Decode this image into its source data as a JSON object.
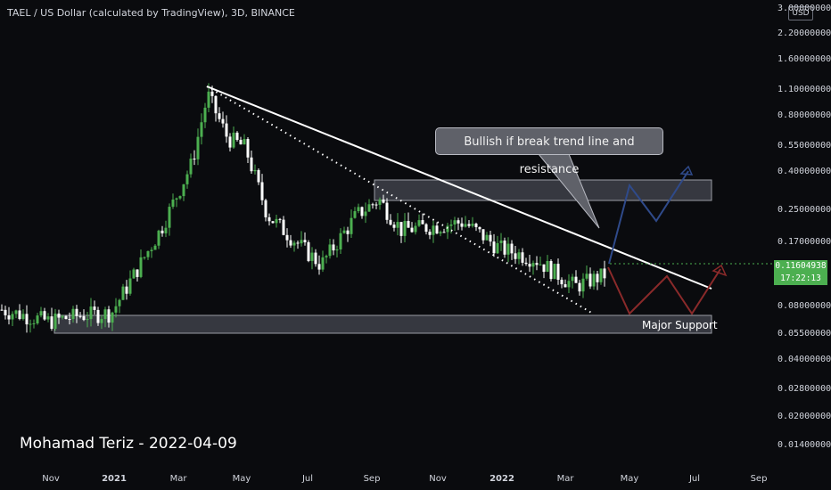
{
  "header": {
    "title": "TAEL / US Dollar (calculated by TradingView), 3D, BINANCE",
    "currency": "USD"
  },
  "price_scale": {
    "ticks": [
      "3.00000000",
      "2.20000000",
      "1.60000000",
      "1.10000000",
      "0.80000000",
      "0.55000000",
      "0.40000000",
      "0.25000000",
      "0.17000000",
      "0.08000000",
      "0.05500000",
      "0.04000000",
      "0.02800000",
      "0.02000000",
      "0.01400000"
    ],
    "current_price": "0.11604938",
    "countdown": "17:22:13"
  },
  "time_scale": {
    "ticks": [
      "Nov",
      "2021",
      "Mar",
      "May",
      "Jul",
      "Sep",
      "Nov",
      "2022",
      "Mar",
      "May",
      "Jul",
      "Sep"
    ]
  },
  "annotations": {
    "callout": "Bullish if break trend line and resistance",
    "support": "Major Support",
    "author": "Mohamad Teriz - 2022-04-09"
  },
  "colors": {
    "background": "#0a0b0e",
    "up": "#4caf50",
    "down": "#ffffff",
    "bull_path": "#2f4a8a",
    "bear_path": "#8a2a2a",
    "zone_fill": "#454852"
  },
  "chart_data": {
    "type": "candlestick",
    "scale": "log",
    "x_axis": "time (3D candles)",
    "y_axis": "price (USD)",
    "ylim": [
      0.011,
      3.0
    ],
    "close_path": [
      {
        "x": "2020-10",
        "y": 0.075
      },
      {
        "x": "2020-11",
        "y": 0.065
      },
      {
        "x": "2020-12",
        "y": 0.07
      },
      {
        "x": "2021-01",
        "y": 0.072
      },
      {
        "x": "2021-02",
        "y": 0.2
      },
      {
        "x": "2021-03",
        "y": 0.45
      },
      {
        "x": "2021-03-25",
        "y": 1.05
      },
      {
        "x": "2021-04",
        "y": 0.62
      },
      {
        "x": "2021-05",
        "y": 0.55
      },
      {
        "x": "2021-06",
        "y": 0.24
      },
      {
        "x": "2021-07",
        "y": 0.13
      },
      {
        "x": "2021-08",
        "y": 0.24
      },
      {
        "x": "2021-09",
        "y": 0.29
      },
      {
        "x": "2021-10",
        "y": 0.2
      },
      {
        "x": "2021-11",
        "y": 0.21
      },
      {
        "x": "2021-12",
        "y": 0.22
      },
      {
        "x": "2022-01",
        "y": 0.16
      },
      {
        "x": "2022-02",
        "y": 0.14
      },
      {
        "x": "2022-03",
        "y": 0.1
      },
      {
        "x": "2022-04-09",
        "y": 0.116
      }
    ],
    "support_zone": [
      0.052,
      0.062
    ],
    "resistance_zone": [
      0.25,
      0.32
    ],
    "trend_line": [
      {
        "x": "2021-03-25",
        "y": 1.05
      },
      {
        "x": "2022-07",
        "y": 0.09
      }
    ],
    "annotations": [
      "Bullish if break trend line and resistance",
      "Major Support"
    ]
  }
}
